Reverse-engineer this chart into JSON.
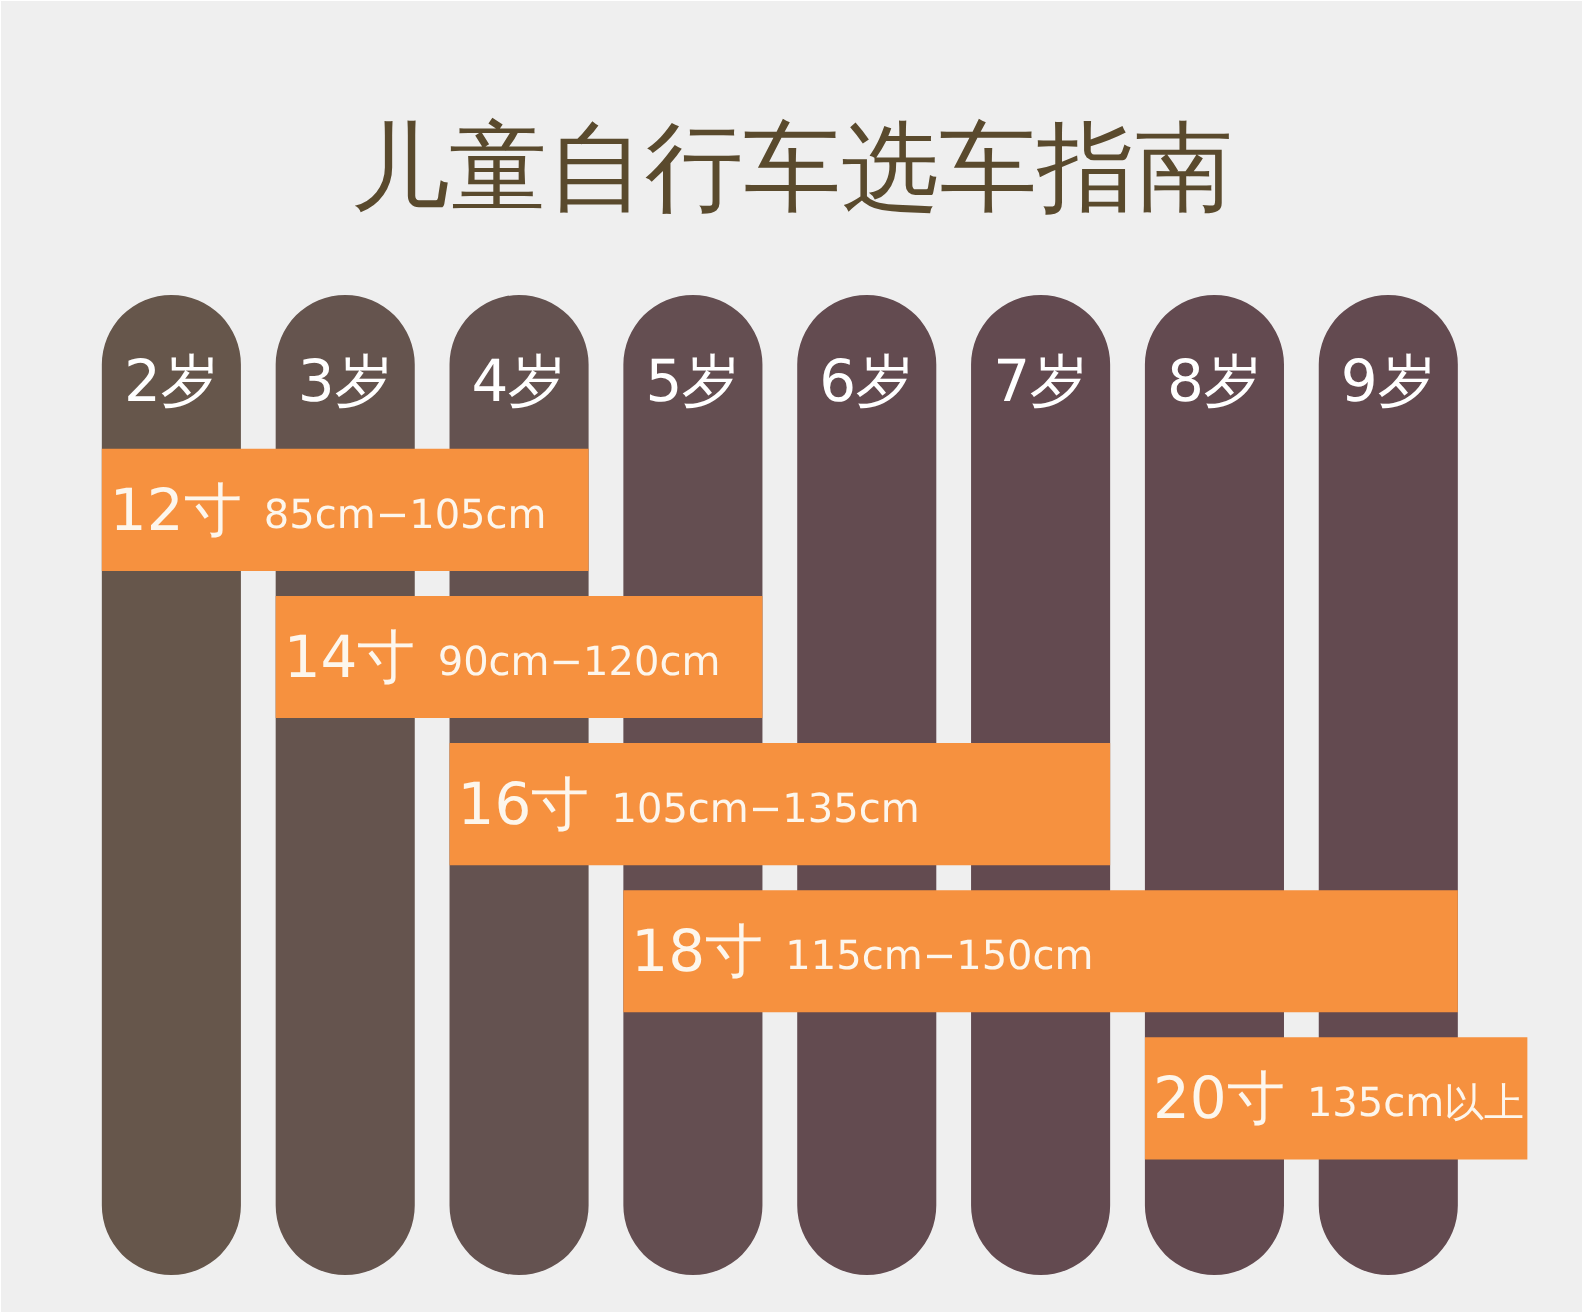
{
  "chart_data": {
    "type": "bar",
    "orientation": "horizontal",
    "title": "儿童自行车选车指南",
    "categories": [
      "12寸",
      "14寸",
      "16寸",
      "18寸",
      "20寸"
    ],
    "base": [
      1.6,
      2.6,
      3.6,
      4.6,
      7.6
    ],
    "values": [
      2.8,
      2.8,
      3.8,
      4.8,
      2.2
    ],
    "color": "#f6913f",
    "xlim": [
      1.02,
      10.12
    ],
    "xticks": [
      {
        "value": 2,
        "label": "2岁"
      },
      {
        "value": 3,
        "label": "3岁"
      },
      {
        "value": 4,
        "label": "4岁"
      },
      {
        "value": 5,
        "label": "5岁"
      },
      {
        "value": 6,
        "label": "6岁"
      },
      {
        "value": 7,
        "label": "7岁"
      },
      {
        "value": 8,
        "label": "8岁"
      },
      {
        "value": 9,
        "label": "9岁"
      }
    ],
    "bands": [
      {
        "axis": "x",
        "from": 1.6,
        "to": 2.4,
        "color": "#66564b"
      },
      {
        "axis": "x",
        "from": 2.6,
        "to": 3.4,
        "color": "#65544e"
      },
      {
        "axis": "x",
        "from": 3.6,
        "to": 4.4,
        "color": "#645250"
      },
      {
        "axis": "x",
        "from": 4.6,
        "to": 5.4,
        "color": "#644e51"
      },
      {
        "axis": "x",
        "from": 5.6,
        "to": 6.4,
        "color": "#634b50"
      },
      {
        "axis": "x",
        "from": 6.6,
        "to": 7.4,
        "color": "#634a50"
      },
      {
        "axis": "x",
        "from": 7.6,
        "to": 8.4,
        "color": "#634a50"
      },
      {
        "axis": "x",
        "from": 8.6,
        "to": 9.4,
        "color": "#634a50"
      }
    ],
    "annotations": [
      "85cm−105cm",
      "90cm−120cm",
      "105cm−135cm",
      "115cm−150cm",
      "135cm以上"
    ]
  }
}
